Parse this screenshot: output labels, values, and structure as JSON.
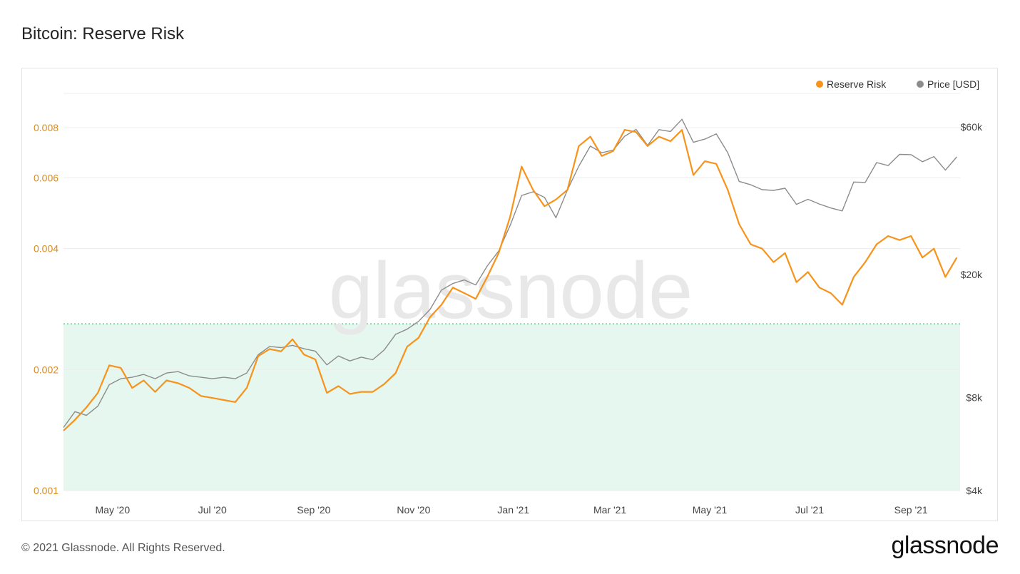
{
  "page": {
    "title": "Bitcoin: Reserve Risk",
    "copyright": "© 2021 Glassnode. All Rights Reserved.",
    "brand": "glassnode",
    "watermark": "glassnode"
  },
  "colors": {
    "reserve_risk": "#f7931a",
    "price": "#8c8c8c",
    "left_axis_text": "#d98b1c",
    "buy_zone_fill": "#e6f7ef",
    "buy_zone_border": "#3aa86b",
    "grid": "#ececec"
  },
  "chart_data": {
    "type": "line",
    "title": "Bitcoin: Reserve Risk",
    "x_ticks": [
      "May '20",
      "Jul '20",
      "Sep '20",
      "Nov '20",
      "Jan '21",
      "Mar '21",
      "May '21",
      "Jul '21",
      "Sep '21"
    ],
    "y_left": {
      "scale": "log",
      "ticks": [
        "0.008",
        "0.006",
        "0.004",
        "0.002",
        "0.001"
      ]
    },
    "y_right": {
      "scale": "log",
      "ticks": [
        "$60k",
        "$20k",
        "$8k",
        "$4k"
      ]
    },
    "legend": [
      "Reserve Risk",
      "Price [USD]"
    ],
    "legend_position": "top-right",
    "threshold_band": {
      "from": 0.001,
      "to": 0.0026
    },
    "series": [
      {
        "name": "Reserve Risk",
        "axis": "left",
        "points": [
          [
            "2020-04-01",
            0.00141
          ],
          [
            "2020-04-08",
            0.0015
          ],
          [
            "2020-04-15",
            0.00161
          ],
          [
            "2020-04-22",
            0.00175
          ],
          [
            "2020-04-29",
            0.00205
          ],
          [
            "2020-05-06",
            0.00202
          ],
          [
            "2020-05-13",
            0.0018
          ],
          [
            "2020-05-20",
            0.00188
          ],
          [
            "2020-05-27",
            0.00176
          ],
          [
            "2020-06-03",
            0.00188
          ],
          [
            "2020-06-10",
            0.00185
          ],
          [
            "2020-06-17",
            0.0018
          ],
          [
            "2020-06-24",
            0.00172
          ],
          [
            "2020-07-01",
            0.0017
          ],
          [
            "2020-07-08",
            0.00168
          ],
          [
            "2020-07-15",
            0.00166
          ],
          [
            "2020-07-22",
            0.0018
          ],
          [
            "2020-07-29",
            0.00216
          ],
          [
            "2020-08-05",
            0.00225
          ],
          [
            "2020-08-12",
            0.00222
          ],
          [
            "2020-08-19",
            0.00238
          ],
          [
            "2020-08-26",
            0.00218
          ],
          [
            "2020-09-02",
            0.00212
          ],
          [
            "2020-09-09",
            0.00175
          ],
          [
            "2020-09-16",
            0.00182
          ],
          [
            "2020-09-23",
            0.00174
          ],
          [
            "2020-09-30",
            0.00176
          ],
          [
            "2020-10-07",
            0.00176
          ],
          [
            "2020-10-14",
            0.00184
          ],
          [
            "2020-10-21",
            0.00196
          ],
          [
            "2020-10-28",
            0.00228
          ],
          [
            "2020-11-04",
            0.0024
          ],
          [
            "2020-11-11",
            0.0027
          ],
          [
            "2020-11-18",
            0.0029
          ],
          [
            "2020-11-25",
            0.0032
          ],
          [
            "2020-12-02",
            0.0031
          ],
          [
            "2020-12-09",
            0.003
          ],
          [
            "2020-12-16",
            0.0034
          ],
          [
            "2020-12-23",
            0.0039
          ],
          [
            "2020-12-30",
            0.0048
          ],
          [
            "2021-01-06",
            0.0064
          ],
          [
            "2021-01-13",
            0.0056
          ],
          [
            "2021-01-20",
            0.0051
          ],
          [
            "2021-01-27",
            0.0053
          ],
          [
            "2021-02-03",
            0.0056
          ],
          [
            "2021-02-10",
            0.0072
          ],
          [
            "2021-02-17",
            0.0076
          ],
          [
            "2021-02-24",
            0.0068
          ],
          [
            "2021-03-03",
            0.007
          ],
          [
            "2021-03-10",
            0.0079
          ],
          [
            "2021-03-17",
            0.0078
          ],
          [
            "2021-03-24",
            0.0072
          ],
          [
            "2021-03-31",
            0.0076
          ],
          [
            "2021-04-07",
            0.0074
          ],
          [
            "2021-04-14",
            0.0079
          ],
          [
            "2021-04-21",
            0.0061
          ],
          [
            "2021-04-28",
            0.0066
          ],
          [
            "2021-05-05",
            0.0065
          ],
          [
            "2021-05-12",
            0.0056
          ],
          [
            "2021-05-19",
            0.0046
          ],
          [
            "2021-05-26",
            0.0041
          ],
          [
            "2021-06-02",
            0.004
          ],
          [
            "2021-06-09",
            0.0037
          ],
          [
            "2021-06-16",
            0.0039
          ],
          [
            "2021-06-23",
            0.0033
          ],
          [
            "2021-06-30",
            0.0035
          ],
          [
            "2021-07-07",
            0.0032
          ],
          [
            "2021-07-14",
            0.0031
          ],
          [
            "2021-07-21",
            0.0029
          ],
          [
            "2021-07-28",
            0.0034
          ],
          [
            "2021-08-04",
            0.0037
          ],
          [
            "2021-08-11",
            0.0041
          ],
          [
            "2021-08-18",
            0.0043
          ],
          [
            "2021-08-25",
            0.0042
          ],
          [
            "2021-09-01",
            0.0043
          ],
          [
            "2021-09-08",
            0.0038
          ],
          [
            "2021-09-15",
            0.004
          ],
          [
            "2021-09-22",
            0.0034
          ],
          [
            "2021-09-29",
            0.0038
          ]
        ]
      },
      {
        "name": "Price [USD]",
        "axis": "right",
        "points": [
          [
            "2020-04-01",
            6400
          ],
          [
            "2020-04-08",
            7200
          ],
          [
            "2020-04-15",
            7000
          ],
          [
            "2020-04-22",
            7500
          ],
          [
            "2020-04-29",
            8800
          ],
          [
            "2020-05-06",
            9200
          ],
          [
            "2020-05-13",
            9300
          ],
          [
            "2020-05-20",
            9500
          ],
          [
            "2020-05-27",
            9200
          ],
          [
            "2020-06-03",
            9600
          ],
          [
            "2020-06-10",
            9700
          ],
          [
            "2020-06-17",
            9400
          ],
          [
            "2020-06-24",
            9300
          ],
          [
            "2020-07-01",
            9200
          ],
          [
            "2020-07-08",
            9300
          ],
          [
            "2020-07-15",
            9200
          ],
          [
            "2020-07-22",
            9600
          ],
          [
            "2020-07-29",
            11000
          ],
          [
            "2020-08-05",
            11700
          ],
          [
            "2020-08-12",
            11600
          ],
          [
            "2020-08-19",
            11800
          ],
          [
            "2020-08-26",
            11500
          ],
          [
            "2020-09-02",
            11300
          ],
          [
            "2020-09-09",
            10200
          ],
          [
            "2020-09-16",
            10900
          ],
          [
            "2020-09-23",
            10500
          ],
          [
            "2020-09-30",
            10800
          ],
          [
            "2020-10-07",
            10600
          ],
          [
            "2020-10-14",
            11400
          ],
          [
            "2020-10-21",
            12800
          ],
          [
            "2020-10-28",
            13300
          ],
          [
            "2020-11-04",
            14100
          ],
          [
            "2020-11-11",
            15400
          ],
          [
            "2020-11-18",
            17800
          ],
          [
            "2020-11-25",
            18700
          ],
          [
            "2020-12-02",
            19200
          ],
          [
            "2020-12-09",
            18500
          ],
          [
            "2020-12-16",
            21300
          ],
          [
            "2020-12-23",
            23800
          ],
          [
            "2020-12-30",
            28800
          ],
          [
            "2021-01-06",
            36000
          ],
          [
            "2021-01-13",
            37000
          ],
          [
            "2021-01-20",
            35500
          ],
          [
            "2021-01-27",
            30500
          ],
          [
            "2021-02-03",
            37500
          ],
          [
            "2021-02-10",
            44800
          ],
          [
            "2021-02-17",
            52000
          ],
          [
            "2021-02-24",
            49500
          ],
          [
            "2021-03-03",
            50500
          ],
          [
            "2021-03-10",
            56000
          ],
          [
            "2021-03-17",
            58900
          ],
          [
            "2021-03-24",
            52300
          ],
          [
            "2021-03-31",
            58800
          ],
          [
            "2021-04-07",
            58000
          ],
          [
            "2021-04-14",
            63500
          ],
          [
            "2021-04-21",
            53500
          ],
          [
            "2021-04-28",
            54800
          ],
          [
            "2021-05-05",
            57000
          ],
          [
            "2021-05-12",
            49500
          ],
          [
            "2021-05-19",
            40000
          ],
          [
            "2021-05-26",
            39000
          ],
          [
            "2021-06-02",
            37600
          ],
          [
            "2021-06-09",
            37400
          ],
          [
            "2021-06-16",
            38000
          ],
          [
            "2021-06-23",
            33700
          ],
          [
            "2021-06-30",
            35000
          ],
          [
            "2021-07-07",
            33800
          ],
          [
            "2021-07-14",
            32800
          ],
          [
            "2021-07-21",
            32100
          ],
          [
            "2021-07-28",
            39800
          ],
          [
            "2021-08-04",
            39700
          ],
          [
            "2021-08-11",
            46000
          ],
          [
            "2021-08-18",
            45000
          ],
          [
            "2021-08-25",
            48900
          ],
          [
            "2021-09-01",
            48800
          ],
          [
            "2021-09-08",
            46300
          ],
          [
            "2021-09-15",
            48100
          ],
          [
            "2021-09-22",
            43500
          ],
          [
            "2021-09-29",
            48000
          ]
        ]
      }
    ]
  }
}
